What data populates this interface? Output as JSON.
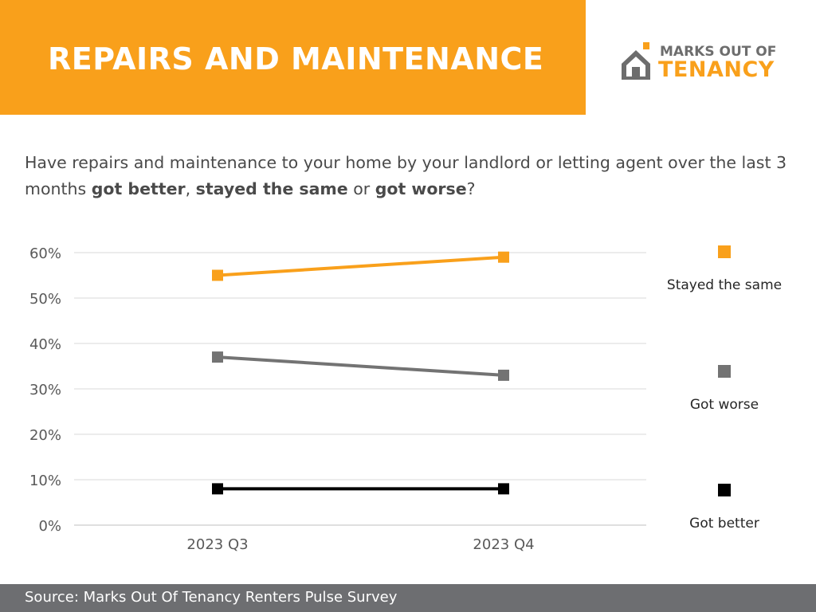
{
  "header": {
    "title": "REPAIRS AND MAINTENANCE",
    "logo_line1": "MARKS OUT OF",
    "logo_line2": "TENANCY"
  },
  "question": {
    "part1": "Have repairs and maintenance to your home by your landlord or letting agent over the last 3 months ",
    "bold1": "got better",
    "sep1": ", ",
    "bold2": "stayed the same",
    "sep2": " or ",
    "bold3": "got worse",
    "end": "?"
  },
  "footer": {
    "source": "Source: Marks Out Of Tenancy Renters Pulse Survey"
  },
  "colors": {
    "brand_orange": "#F9A01B",
    "grey": "#6d6e71",
    "black": "#000000"
  },
  "chart_data": {
    "type": "line",
    "categories": [
      "2023 Q3",
      "2023 Q4"
    ],
    "series": [
      {
        "name": "Stayed the same",
        "values": [
          55,
          59
        ],
        "color": "#F9A01B"
      },
      {
        "name": "Got worse",
        "values": [
          37,
          33
        ],
        "color": "#737373"
      },
      {
        "name": "Got better",
        "values": [
          8,
          8
        ],
        "color": "#000000"
      }
    ],
    "y_ticks": [
      "0%",
      "10%",
      "20%",
      "30%",
      "40%",
      "50%",
      "60%"
    ],
    "ylim": [
      0,
      60
    ],
    "grid": true,
    "legend_position": "right"
  }
}
